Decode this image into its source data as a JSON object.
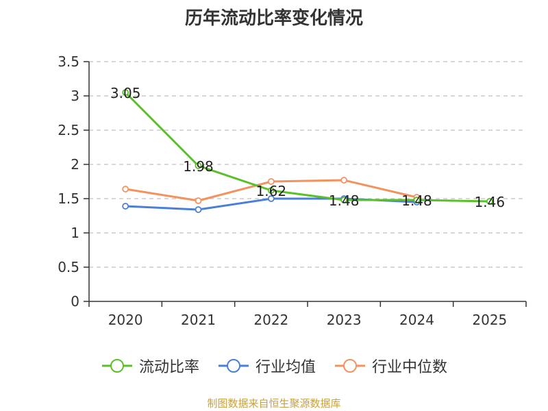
{
  "title": "历年流动比率变化情况",
  "source_note": "制图数据来自恒生聚源数据库",
  "chart_data": {
    "type": "line",
    "title": "历年流动比率变化情况",
    "xlabel": "",
    "ylabel": "",
    "categories": [
      "2020",
      "2021",
      "2022",
      "2023",
      "2024",
      "2025"
    ],
    "ylim": [
      0,
      3.5
    ],
    "yticks": [
      0,
      0.5,
      1,
      1.5,
      2,
      2.5,
      3,
      3.5
    ],
    "ytick_labels": [
      "0",
      "0.5",
      "1",
      "1.5",
      "2",
      "2.5",
      "3",
      "3.5"
    ],
    "grid": "horizontal-dashed",
    "legend_position": "bottom",
    "series": [
      {
        "name": "流动比率",
        "color": "#5ac02a",
        "values": [
          3.05,
          1.98,
          1.62,
          1.48,
          1.48,
          1.46
        ],
        "labels": [
          "3.05",
          "1.98",
          "1.62",
          "1.48",
          "1.48",
          "1.46"
        ]
      },
      {
        "name": "行业均值",
        "color": "#4a7fd8",
        "values": [
          1.39,
          1.34,
          1.5,
          1.5,
          1.45,
          null
        ]
      },
      {
        "name": "行业中位数",
        "color": "#f4925e",
        "values": [
          1.64,
          1.47,
          1.75,
          1.77,
          1.52,
          null
        ]
      }
    ]
  }
}
